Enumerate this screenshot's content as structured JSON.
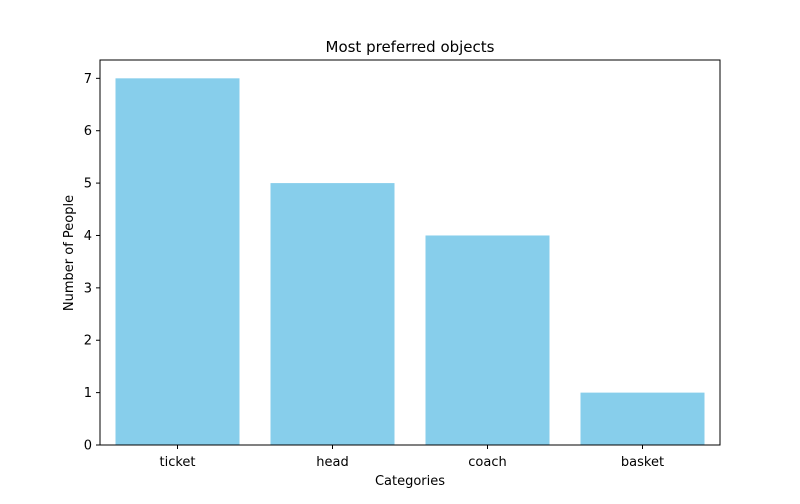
{
  "chart_data": {
    "type": "bar",
    "title": "Most preferred objects",
    "xlabel": "Categories",
    "ylabel": "Number of People",
    "categories": [
      "ticket",
      "head",
      "coach",
      "basket"
    ],
    "values": [
      7,
      5,
      4,
      1
    ],
    "ylim": [
      0,
      7.35
    ],
    "yticks": [
      0,
      1,
      2,
      3,
      4,
      5,
      6,
      7
    ],
    "bar_color": "#87ceeb",
    "grid": false,
    "legend": "none"
  }
}
